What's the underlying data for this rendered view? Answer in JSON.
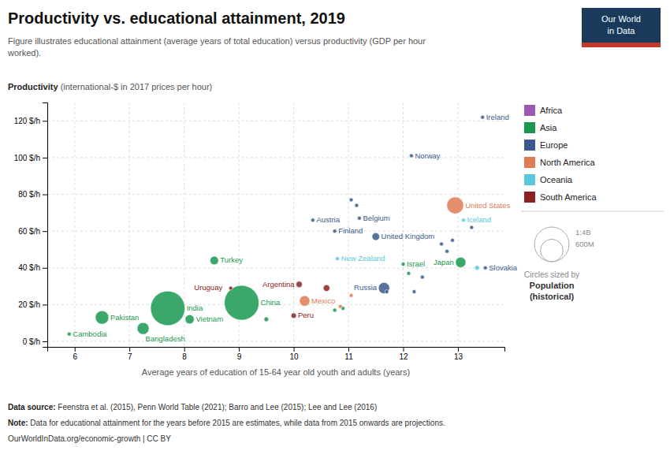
{
  "chart_data": {
    "type": "scatter",
    "title": "Productivity vs. educational attainment, 2019",
    "subtitle": "Figure illustrates educational attainment (average years of total education) versus productivity (GDP per hour\nworked).",
    "ylabel_parts": [
      "Productivity",
      " (international-$ in 2017 prices per hour)"
    ],
    "xlabel": "Average years of education of 15-64 year old youth and adults (years)",
    "xlim": [
      5.5,
      13.85
    ],
    "ylim": [
      -3,
      130
    ],
    "xticks": [
      6,
      7,
      8,
      9,
      10,
      11,
      12,
      13
    ],
    "yticks": [
      {
        "value": 0,
        "label": "0 $/h"
      },
      {
        "value": 20,
        "label": "20 $/h"
      },
      {
        "value": 40,
        "label": "40 $/h"
      },
      {
        "value": 60,
        "label": "60 $/h"
      },
      {
        "value": 80,
        "label": "80 $/h"
      },
      {
        "value": 100,
        "label": "100 $/h"
      },
      {
        "value": 120,
        "label": "120 $/h"
      }
    ],
    "grid": true,
    "series": [
      {
        "name": "Africa",
        "color": "#9B59B6",
        "x": [],
        "values": [],
        "sizes": [],
        "labels": []
      },
      {
        "name": "Asia",
        "color": "#1A9850",
        "x": [
          5.9,
          6.5,
          7.25,
          7.7,
          8.1,
          9.05,
          8.55,
          12.0,
          13.05,
          9.5,
          10.75,
          10.9,
          12.1
        ],
        "values": [
          4,
          13,
          7,
          18,
          12,
          21,
          44,
          42,
          43,
          12,
          17,
          18,
          37
        ],
        "sizes": [
          16,
          210,
          165,
          1380,
          97,
          1400,
          84,
          9,
          126,
          25,
          8,
          7,
          6
        ],
        "labels": [
          "Cambodia",
          "Pakistan",
          "Bangladesh",
          "India",
          "Vietnam",
          "China",
          "Turkey",
          "Israel",
          "Japan",
          null,
          null,
          null,
          null
        ]
      },
      {
        "name": "Europe",
        "color": "#3A5A8C",
        "x": [
          10.35,
          10.75,
          11.2,
          11.65,
          11.5,
          13.5,
          12.15,
          13.45,
          11.05,
          11.15,
          11.7,
          12.2,
          12.35,
          12.7,
          12.8,
          13.25,
          12.9
        ],
        "values": [
          66,
          60,
          67,
          29,
          57,
          40,
          101,
          122,
          77,
          74,
          27,
          27,
          35,
          53,
          49,
          62,
          55
        ],
        "sizes": [
          9,
          5.5,
          11.5,
          145,
          67,
          5.5,
          5.4,
          5,
          4,
          3,
          5,
          3,
          4,
          3,
          3,
          3,
          4
        ],
        "labels": [
          "Austria",
          "Finland",
          "Belgium",
          "Russia",
          "United Kingdom",
          "Slovakia",
          "Norway",
          "Ireland",
          null,
          null,
          null,
          null,
          null,
          null,
          null,
          null,
          null
        ]
      },
      {
        "name": "North America",
        "color": "#E07B54",
        "x": [
          10.2,
          12.95,
          10.85,
          11.05
        ],
        "values": [
          22,
          74,
          19,
          25
        ],
        "sizes": [
          128,
          330,
          6,
          4
        ],
        "labels": [
          "Mexico",
          "United States",
          null,
          null
        ]
      },
      {
        "name": "Oceania",
        "color": "#5BC8DB",
        "x": [
          10.8,
          13.1,
          13.35
        ],
        "values": [
          45,
          66,
          40
        ],
        "sizes": [
          5,
          0.37,
          26
        ],
        "labels": [
          "New Zealand",
          "Iceland",
          null
        ]
      },
      {
        "name": "South America",
        "color": "#8B2222",
        "x": [
          8.85,
          10.1,
          10.0,
          10.6
        ],
        "values": [
          29,
          31,
          14,
          29
        ],
        "sizes": [
          3.5,
          45,
          33,
          50
        ],
        "labels": [
          "Uruguay",
          "Argentina",
          "Peru",
          null
        ]
      }
    ],
    "size_legend": {
      "labels": [
        "1:4B",
        "600M"
      ],
      "caption": [
        "Circles sized by",
        "Population",
        "(historical)"
      ]
    },
    "footer": [
      {
        "bold": "Data source:",
        "text": " Feenstra et al. (2015), Penn World Table (2021); Barro and Lee (2015); Lee and Lee (2016)"
      },
      {
        "bold": "Note:",
        "text": " Data for educational attainment for the years before 2015 are estimates, while data from 2015 onwards are projections."
      },
      {
        "text": "OurWorldInData.org/economic-growth | CC BY"
      }
    ],
    "logo": {
      "lines": [
        "Our World",
        "in Data"
      ],
      "colors": [
        "#1A3A5C",
        "#C0392B"
      ]
    }
  }
}
